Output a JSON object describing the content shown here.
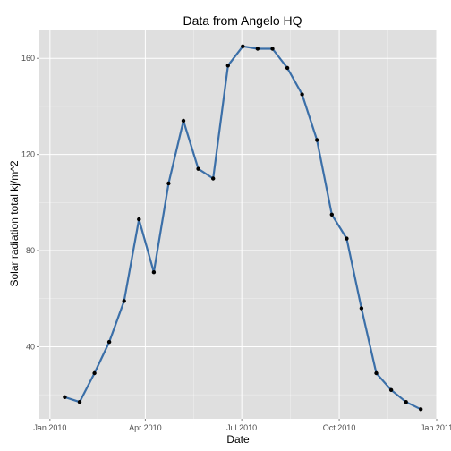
{
  "chart_data": {
    "type": "line",
    "title": "Data from Angelo HQ",
    "xlabel": "Date",
    "ylabel": "Solar radiation total kj/m^2",
    "x_axis": {
      "range": [
        "2009-12-22",
        "2011-01-01"
      ],
      "ticks": [
        {
          "date": "2010-01-01",
          "label": "Jan 2010"
        },
        {
          "date": "2010-04-01",
          "label": "Apr 2010"
        },
        {
          "date": "2010-07-01",
          "label": "Jul 2010"
        },
        {
          "date": "2010-10-01",
          "label": "Oct 2010"
        },
        {
          "date": "2011-01-01",
          "label": "Jan 2011"
        }
      ]
    },
    "y_axis": {
      "range": [
        10,
        172
      ],
      "ticks": [
        40,
        80,
        120,
        160
      ]
    },
    "grid": true,
    "background": "#dfdfdf",
    "grid_color": "#ffffff",
    "line_color": "#3b6fa8",
    "point_color": "#000000",
    "series": [
      {
        "x": [
          "2010-01-15",
          "2010-01-29",
          "2010-02-12",
          "2010-02-26",
          "2010-03-12",
          "2010-03-26",
          "2010-04-09",
          "2010-04-23",
          "2010-05-07",
          "2010-05-21",
          "2010-06-04",
          "2010-06-18",
          "2010-07-02",
          "2010-07-16",
          "2010-07-30",
          "2010-08-13",
          "2010-08-27",
          "2010-09-10",
          "2010-09-24",
          "2010-10-08",
          "2010-10-22",
          "2010-11-05",
          "2010-11-19",
          "2010-12-03",
          "2010-12-17"
        ],
        "y": [
          19,
          17,
          29,
          42,
          59,
          93,
          71,
          108,
          134,
          114,
          110,
          157,
          165,
          164,
          164,
          156,
          145,
          126,
          95,
          85,
          56,
          29,
          22,
          17,
          14
        ]
      }
    ]
  }
}
